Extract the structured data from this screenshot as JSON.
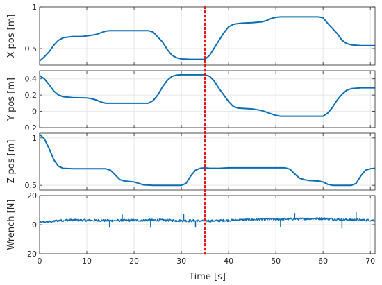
{
  "chart_data": [
    {
      "type": "line",
      "ylabel": "X pos [m]",
      "ylim": [
        0.3,
        1.0
      ],
      "yticks": [
        0.5,
        1
      ],
      "ytick_labels": [
        "0.5",
        "1"
      ],
      "xlim": [
        0,
        71
      ],
      "xticks": [
        0,
        10,
        20,
        30,
        40,
        50,
        60,
        70
      ],
      "xtick_labels": [],
      "grid": true,
      "series": [
        {
          "x": [
            0,
            1,
            2,
            3,
            4,
            5,
            7,
            9,
            11,
            12,
            13,
            14,
            15,
            17,
            20,
            23,
            24,
            26,
            27,
            28,
            29,
            30,
            32,
            34,
            35,
            36,
            37,
            38,
            39,
            40,
            41,
            42,
            43,
            45,
            47,
            48,
            49,
            50,
            51,
            53,
            55,
            57,
            58,
            59,
            60,
            61,
            63,
            64,
            65,
            66,
            67,
            68,
            71
          ],
          "y": [
            0.35,
            0.4,
            0.46,
            0.54,
            0.6,
            0.63,
            0.645,
            0.645,
            0.66,
            0.67,
            0.69,
            0.71,
            0.715,
            0.715,
            0.715,
            0.715,
            0.7,
            0.58,
            0.49,
            0.42,
            0.39,
            0.375,
            0.37,
            0.37,
            0.37,
            0.42,
            0.51,
            0.6,
            0.69,
            0.76,
            0.79,
            0.8,
            0.805,
            0.81,
            0.82,
            0.835,
            0.86,
            0.875,
            0.88,
            0.88,
            0.88,
            0.88,
            0.88,
            0.88,
            0.87,
            0.8,
            0.68,
            0.6,
            0.56,
            0.545,
            0.54,
            0.535,
            0.535
          ]
        }
      ]
    },
    {
      "type": "line",
      "ylabel": "Y pos [m]",
      "ylim": [
        -0.2,
        0.5
      ],
      "yticks": [
        -0.2,
        0,
        0.2,
        0.4
      ],
      "ytick_labels": [
        "−0.2",
        "0",
        "0.2",
        "0.4"
      ],
      "xlim": [
        0,
        71
      ],
      "xticks": [
        0,
        10,
        20,
        30,
        40,
        50,
        60,
        70
      ],
      "xtick_labels": [],
      "grid": true,
      "series": [
        {
          "x": [
            0,
            1,
            2,
            3,
            4,
            5,
            7,
            10,
            11,
            12,
            13,
            14,
            15,
            17,
            20,
            23,
            24,
            25,
            26,
            27,
            28,
            29,
            30,
            32,
            35,
            36,
            37,
            38,
            39,
            40,
            41,
            42,
            45,
            46,
            47,
            48,
            49,
            50,
            51,
            55,
            59,
            60,
            61,
            62,
            63,
            64,
            65,
            66,
            67,
            68,
            71
          ],
          "y": [
            0.44,
            0.4,
            0.33,
            0.25,
            0.2,
            0.18,
            0.17,
            0.165,
            0.155,
            0.14,
            0.115,
            0.1,
            0.1,
            0.1,
            0.1,
            0.1,
            0.13,
            0.2,
            0.3,
            0.38,
            0.43,
            0.445,
            0.45,
            0.45,
            0.45,
            0.43,
            0.37,
            0.28,
            0.2,
            0.12,
            0.06,
            0.04,
            0.03,
            0.02,
            0.01,
            -0.01,
            -0.03,
            -0.05,
            -0.06,
            -0.06,
            -0.06,
            -0.06,
            -0.02,
            0.05,
            0.14,
            0.21,
            0.26,
            0.28,
            0.285,
            0.29,
            0.29
          ]
        }
      ]
    },
    {
      "type": "line",
      "ylabel": "Z pos [m]",
      "ylim": [
        0.45,
        1.05
      ],
      "yticks": [
        0.5,
        1
      ],
      "ytick_labels": [
        "0.5",
        "1"
      ],
      "xlim": [
        0,
        71
      ],
      "xticks": [
        0,
        10,
        20,
        30,
        40,
        50,
        60,
        70
      ],
      "xtick_labels": [],
      "grid": true,
      "series": [
        {
          "x": [
            0,
            1,
            2,
            3,
            4,
            5,
            7,
            10,
            12,
            14,
            15,
            16,
            17,
            18,
            20,
            21,
            22,
            24,
            26,
            28,
            30,
            31,
            32,
            33,
            34,
            35,
            36,
            38,
            40,
            42,
            45,
            48,
            50,
            52,
            53,
            54,
            55,
            56,
            57,
            59,
            60,
            61,
            62,
            65,
            66,
            67,
            68,
            69,
            70,
            71
          ],
          "y": [
            1.04,
            0.99,
            0.89,
            0.77,
            0.7,
            0.68,
            0.675,
            0.675,
            0.675,
            0.675,
            0.66,
            0.61,
            0.56,
            0.545,
            0.535,
            0.52,
            0.505,
            0.5,
            0.5,
            0.5,
            0.5,
            0.52,
            0.6,
            0.66,
            0.68,
            0.685,
            0.68,
            0.68,
            0.685,
            0.685,
            0.685,
            0.685,
            0.685,
            0.685,
            0.67,
            0.62,
            0.575,
            0.56,
            0.55,
            0.545,
            0.535,
            0.51,
            0.5,
            0.5,
            0.5,
            0.52,
            0.6,
            0.66,
            0.675,
            0.68
          ]
        }
      ]
    },
    {
      "type": "line",
      "ylabel": "Wrench [N]",
      "xlabel": "Time [s]",
      "ylim": [
        -20,
        20
      ],
      "yticks": [
        -20,
        0,
        20
      ],
      "ytick_labels": [
        "−20",
        "0",
        "20"
      ],
      "xlim": [
        0,
        71
      ],
      "xticks": [
        0,
        10,
        20,
        30,
        40,
        50,
        60,
        70
      ],
      "xtick_labels": [
        "0",
        "10",
        "20",
        "30",
        "40",
        "50",
        "60",
        "70"
      ],
      "grid": true,
      "noise_amplitude": 0.8,
      "series": [
        {
          "x": [
            0,
            2,
            4,
            6,
            10,
            15,
            20,
            25,
            30,
            35,
            40,
            45,
            50,
            55,
            60,
            65,
            71
          ],
          "y": [
            1.5,
            2.0,
            2.8,
            3.2,
            3.0,
            2.8,
            3.0,
            3.2,
            2.8,
            2.6,
            3.0,
            3.5,
            3.8,
            4.0,
            4.2,
            3.5,
            3.0
          ]
        }
      ],
      "spikes": [
        {
          "x": 14.8,
          "y": -2.0
        },
        {
          "x": 17.5,
          "y": 7.0
        },
        {
          "x": 23.5,
          "y": -2.0
        },
        {
          "x": 30.5,
          "y": 7.5
        },
        {
          "x": 33.0,
          "y": -2.0
        },
        {
          "x": 51.0,
          "y": -1.5
        },
        {
          "x": 54.0,
          "y": 8.0
        },
        {
          "x": 64.0,
          "y": -2.5
        },
        {
          "x": 67.0,
          "y": 8.5
        }
      ]
    }
  ],
  "event_marker": {
    "x": 35,
    "color": "#e8141b"
  },
  "colors": {
    "line": "#0b6db4",
    "grid": "#e6e6e6",
    "axis": "#262626"
  }
}
